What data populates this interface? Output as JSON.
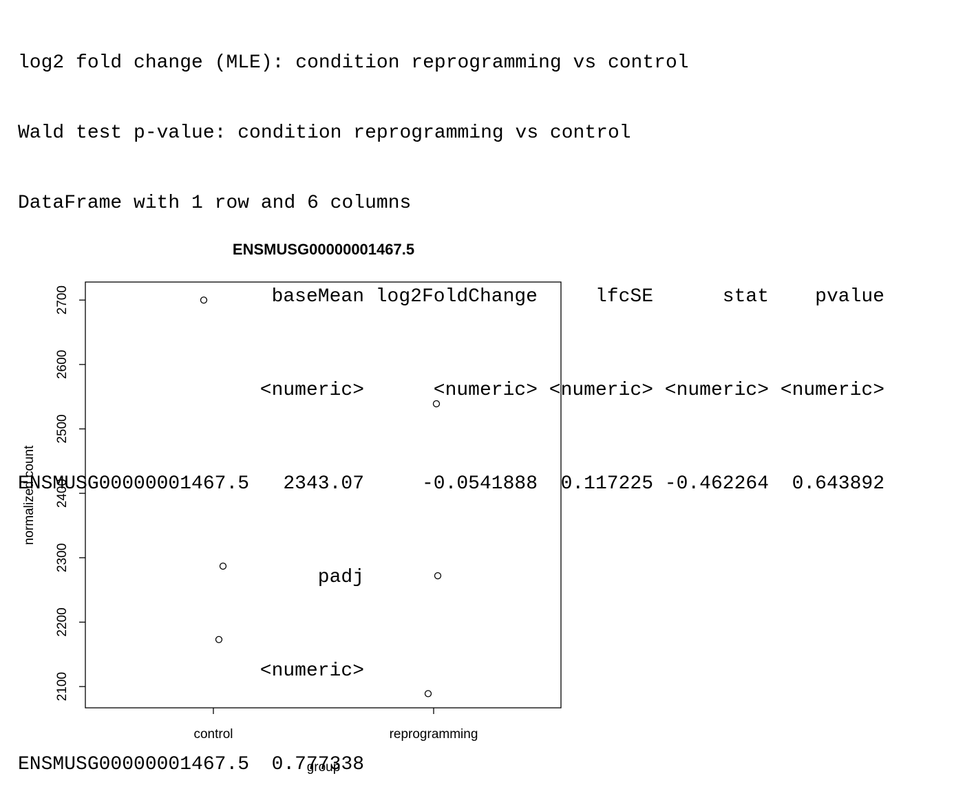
{
  "console": {
    "header_lines": [
      "log2 fold change (MLE): condition reprogramming vs control",
      "Wald test p-value: condition reprogramming vs control",
      "DataFrame with 1 row and 6 columns"
    ],
    "table_part1": {
      "columns": [
        "baseMean",
        "log2FoldChange",
        "lfcSE",
        "stat",
        "pvalue"
      ],
      "types": [
        "<numeric>",
        "<numeric>",
        "<numeric>",
        "<numeric>",
        "<numeric>"
      ],
      "row_name": "ENSMUSG00000001467.5",
      "values": [
        "2343.07",
        "-0.0541888",
        "0.117225",
        "-0.462264",
        "0.643892"
      ]
    },
    "table_part2": {
      "columns": [
        "padj"
      ],
      "types": [
        "<numeric>"
      ],
      "row_name": "ENSMUSG00000001467.5",
      "values": [
        "0.777338"
      ]
    }
  },
  "chart_data": {
    "type": "scatter",
    "title": "ENSMUSG00000001467.5",
    "xlabel": "group",
    "ylabel": "normalized count",
    "categories": [
      "control",
      "reprogramming"
    ],
    "yticks": [
      "2100",
      "2200",
      "2300",
      "2400",
      "2500",
      "2600",
      "2700"
    ],
    "ylim": [
      2067,
      2728
    ],
    "points": [
      {
        "group": "control",
        "y": 2700
      },
      {
        "group": "control",
        "y": 2287
      },
      {
        "group": "control",
        "y": 2173
      },
      {
        "group": "reprogramming",
        "y": 2539
      },
      {
        "group": "reprogramming",
        "y": 2272
      },
      {
        "group": "reprogramming",
        "y": 2089
      }
    ],
    "grid": false,
    "legend": "none",
    "colors": {
      "marker": "#000000",
      "frame": "#000000"
    }
  }
}
